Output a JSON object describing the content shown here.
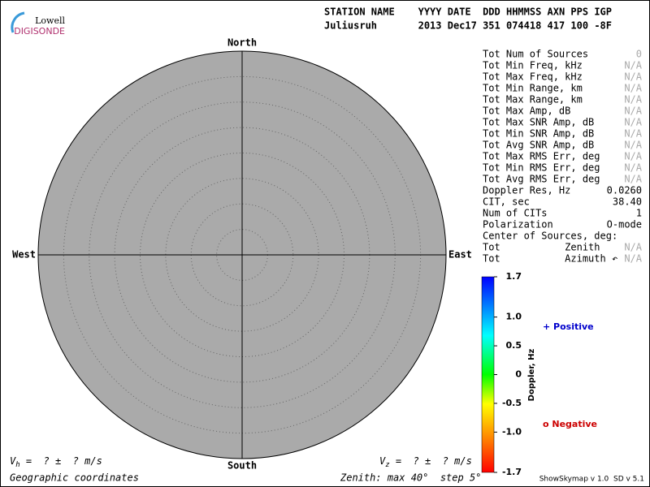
{
  "logo": {
    "top": "Lowell",
    "bottom": "DIGISONDE"
  },
  "header": {
    "line1": "STATION NAME    YYYY DATE  DDD HHMMSS AXN PPS IGP",
    "line2": "Juliusruh       2013 Dec17 351 074418 417 100 -8F"
  },
  "skymap": {
    "north": "North",
    "south": "South",
    "east": "East",
    "west": "West"
  },
  "stats": [
    {
      "label": "Tot Num of Sources",
      "value": "0",
      "value_color": "#aaaaaa"
    },
    {
      "label": "Tot Min Freq, kHz",
      "value": "N/A",
      "value_color": "#aaaaaa"
    },
    {
      "label": "Tot Max Freq, kHz",
      "value": "N/A",
      "value_color": "#aaaaaa"
    },
    {
      "label": "Tot Min Range, km",
      "value": "N/A",
      "value_color": "#aaaaaa"
    },
    {
      "label": "Tot Max Range, km",
      "value": "N/A",
      "value_color": "#aaaaaa"
    },
    {
      "label": "Tot Max Amp, dB",
      "value": "N/A",
      "value_color": "#aaaaaa"
    },
    {
      "label": "Tot Max SNR Amp, dB",
      "value": "N/A",
      "value_color": "#aaaaaa"
    },
    {
      "label": "Tot Min SNR Amp, dB",
      "value": "N/A",
      "value_color": "#aaaaaa"
    },
    {
      "label": "Tot Avg SNR Amp, dB",
      "value": "N/A",
      "value_color": "#aaaaaa"
    },
    {
      "label": "Tot Max RMS Err, deg",
      "value": "N/A",
      "value_color": "#aaaaaa"
    },
    {
      "label": "Tot Min RMS Err, deg",
      "value": "N/A",
      "value_color": "#aaaaaa"
    },
    {
      "label": "Tot Avg RMS Err, deg",
      "value": "N/A",
      "value_color": "#aaaaaa"
    },
    {
      "label": "Doppler Res, Hz",
      "value": "0.0260",
      "value_color": "#000000"
    },
    {
      "label": "CIT, sec",
      "value": "38.40",
      "value_color": "#000000"
    },
    {
      "label": "Num of CITs",
      "value": "1",
      "value_color": "#000000"
    },
    {
      "label": "Polarization",
      "value": "O-mode",
      "value_color": "#000000"
    },
    {
      "label": "Center of Sources, deg:"
    },
    {
      "label": "Tot           Zenith",
      "value": "N/A",
      "value_color": "#aaaaaa"
    },
    {
      "label": "Tot           Azimuth ↶",
      "value": "N/A",
      "value_color": "#aaaaaa"
    }
  ],
  "colorbar": {
    "title": "Doppler, Hz",
    "range": [
      -1.7,
      1.7
    ],
    "ticks": [
      1.7,
      {
        "value": 1,
        "label": "1.0"
      },
      0.5,
      0,
      -0.5,
      {
        "value": -1,
        "label": "-1.0"
      },
      -1.7
    ]
  },
  "legend": {
    "positive": "+ Positive",
    "negative": "o Negative"
  },
  "footer": {
    "vh_symbol": "V",
    "vh_sub": "h",
    "vh_text": " =  ? ±  ? m/s",
    "vz_symbol": "V",
    "vz_sub": "z",
    "vz_text": " =  ? ±  ? m/s",
    "coordinates": "Geographic coordinates",
    "zenith": "Zenith: max 40°  step 5°",
    "version": "ShowSkymap v 1.0  SD v 5.1"
  }
}
